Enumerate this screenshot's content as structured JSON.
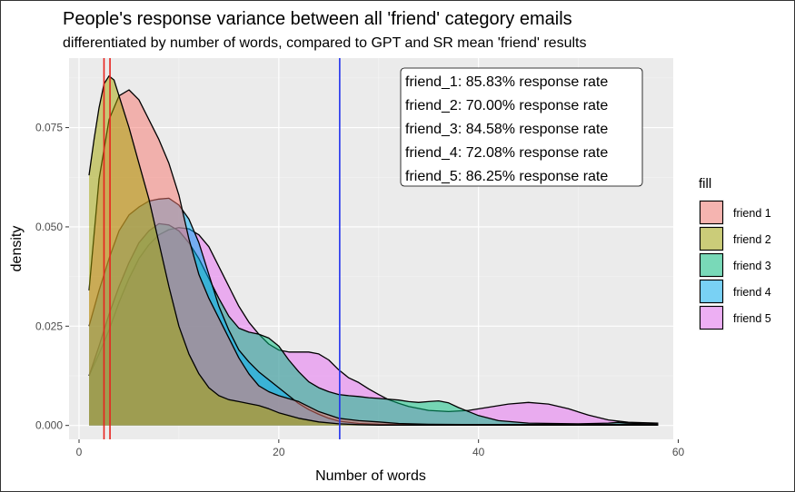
{
  "chart_data": {
    "type": "area",
    "title": "People's response variance between all 'friend' category emails",
    "subtitle": "differentiated by number of words, compared to GPT and SR mean 'friend' results",
    "xlabel": "Number of words",
    "ylabel": "density",
    "xlim": [
      -1,
      59.5
    ],
    "ylim": [
      -0.0035,
      0.0925
    ],
    "x_ticks": [
      0,
      20,
      40,
      60
    ],
    "y_ticks": [
      0.0,
      0.025,
      0.05,
      0.075
    ],
    "x_tick_labels": [
      "0",
      "20",
      "40",
      "60"
    ],
    "y_tick_labels": [
      "0.000",
      "0.025",
      "0.050",
      "0.075"
    ],
    "grid": true,
    "legend": {
      "title": "fill",
      "placement": "right",
      "entries": [
        "friend 1",
        "friend 2",
        "friend 3",
        "friend 4",
        "friend 5"
      ]
    },
    "vlines": [
      {
        "x": 2.5,
        "color": "#e8221f"
      },
      {
        "x": 3.1,
        "color": "#e8221f"
      },
      {
        "x": 26.1,
        "color": "#2233ee"
      }
    ],
    "annotations": [
      "friend_1: 85.83% response rate",
      "friend_2: 70.00% response rate",
      "friend_3: 84.58% response rate",
      "friend_4: 72.08% response rate",
      "friend_5: 86.25% response rate"
    ],
    "series": [
      {
        "name": "friend 1",
        "color": "#F8766D",
        "points": [
          [
            1,
            0.034
          ],
          [
            2,
            0.062
          ],
          [
            3,
            0.077
          ],
          [
            4,
            0.083
          ],
          [
            5,
            0.0845
          ],
          [
            6,
            0.082
          ],
          [
            7,
            0.077
          ],
          [
            8,
            0.072
          ],
          [
            9,
            0.066
          ],
          [
            10,
            0.058
          ],
          [
            11,
            0.047
          ],
          [
            12,
            0.038
          ],
          [
            13,
            0.032
          ],
          [
            14,
            0.027
          ],
          [
            15,
            0.022
          ],
          [
            16,
            0.017
          ],
          [
            17,
            0.013
          ],
          [
            18,
            0.01
          ],
          [
            19,
            0.0085
          ],
          [
            20,
            0.0075
          ],
          [
            22,
            0.006
          ],
          [
            24,
            0.0035
          ],
          [
            26,
            0.0018
          ],
          [
            28,
            0.0012
          ],
          [
            30,
            0.0009
          ],
          [
            32,
            0.0005
          ],
          [
            35,
            0.0003
          ],
          [
            40,
            0.0002
          ],
          [
            45,
            0.0002
          ],
          [
            50,
            0.0002
          ],
          [
            55,
            0.0003
          ],
          [
            58,
            0.0003
          ]
        ]
      },
      {
        "name": "friend 2",
        "color": "#A3A500",
        "points": [
          [
            1,
            0.063
          ],
          [
            1.5,
            0.072
          ],
          [
            2,
            0.08
          ],
          [
            2.5,
            0.086
          ],
          [
            3,
            0.088
          ],
          [
            3.5,
            0.087
          ],
          [
            4,
            0.083
          ],
          [
            5,
            0.075
          ],
          [
            6,
            0.066
          ],
          [
            7,
            0.057
          ],
          [
            8,
            0.046
          ],
          [
            9,
            0.035
          ],
          [
            10,
            0.025
          ],
          [
            11,
            0.018
          ],
          [
            12,
            0.013
          ],
          [
            13,
            0.0095
          ],
          [
            14,
            0.0075
          ],
          [
            15,
            0.0065
          ],
          [
            16,
            0.006
          ],
          [
            17,
            0.0055
          ],
          [
            18,
            0.005
          ],
          [
            19,
            0.0042
          ],
          [
            20,
            0.0032
          ],
          [
            22,
            0.0018
          ],
          [
            24,
            0.0009
          ],
          [
            26,
            0.0004
          ],
          [
            28,
            0.0002
          ],
          [
            30,
            0.0001
          ],
          [
            35,
            0.0001
          ],
          [
            40,
            0.0001
          ],
          [
            45,
            0.0001
          ],
          [
            50,
            0.0001
          ],
          [
            58,
            0.0001
          ]
        ]
      },
      {
        "name": "friend 3",
        "color": "#00BF7D",
        "points": [
          [
            1,
            0.0125
          ],
          [
            2,
            0.02
          ],
          [
            3,
            0.028
          ],
          [
            4,
            0.035
          ],
          [
            5,
            0.041
          ],
          [
            6,
            0.046
          ],
          [
            7,
            0.049
          ],
          [
            8,
            0.0508
          ],
          [
            9,
            0.0505
          ],
          [
            10,
            0.049
          ],
          [
            11,
            0.046
          ],
          [
            12,
            0.042
          ],
          [
            13,
            0.037
          ],
          [
            14,
            0.032
          ],
          [
            15,
            0.0275
          ],
          [
            16,
            0.0245
          ],
          [
            17,
            0.0235
          ],
          [
            18,
            0.023
          ],
          [
            19,
            0.022
          ],
          [
            20,
            0.02
          ],
          [
            21,
            0.0165
          ],
          [
            22,
            0.0135
          ],
          [
            23,
            0.011
          ],
          [
            24,
            0.0095
          ],
          [
            25,
            0.0085
          ],
          [
            26,
            0.0078
          ],
          [
            27,
            0.0075
          ],
          [
            28,
            0.0073
          ],
          [
            29,
            0.007
          ],
          [
            30,
            0.0068
          ],
          [
            32,
            0.0064
          ],
          [
            33,
            0.006
          ],
          [
            34,
            0.0058
          ],
          [
            35,
            0.006
          ],
          [
            36,
            0.0062
          ],
          [
            37,
            0.0057
          ],
          [
            38,
            0.0045
          ],
          [
            40,
            0.0025
          ],
          [
            42,
            0.0012
          ],
          [
            45,
            0.0006
          ],
          [
            50,
            0.0004
          ],
          [
            53,
            0.0006
          ],
          [
            54,
            0.0008
          ],
          [
            55,
            0.0006
          ],
          [
            58,
            0.0003
          ]
        ]
      },
      {
        "name": "friend 4",
        "color": "#00B0F6",
        "points": [
          [
            1,
            0.025
          ],
          [
            2,
            0.034
          ],
          [
            3,
            0.042
          ],
          [
            4,
            0.049
          ],
          [
            5,
            0.053
          ],
          [
            6,
            0.055
          ],
          [
            7,
            0.0565
          ],
          [
            8,
            0.057
          ],
          [
            9,
            0.0572
          ],
          [
            10,
            0.0555
          ],
          [
            11,
            0.052
          ],
          [
            12,
            0.046
          ],
          [
            13,
            0.038
          ],
          [
            14,
            0.03
          ],
          [
            15,
            0.024
          ],
          [
            16,
            0.019
          ],
          [
            17,
            0.016
          ],
          [
            18,
            0.0135
          ],
          [
            19,
            0.0115
          ],
          [
            20,
            0.0095
          ],
          [
            21,
            0.0075
          ],
          [
            22,
            0.0055
          ],
          [
            23,
            0.004
          ],
          [
            24,
            0.0028
          ],
          [
            25,
            0.0018
          ],
          [
            26,
            0.0011
          ],
          [
            28,
            0.0005
          ],
          [
            30,
            0.0003
          ],
          [
            35,
            0.0002
          ],
          [
            40,
            0.0002
          ],
          [
            45,
            0.0002
          ],
          [
            50,
            0.0002
          ],
          [
            55,
            0.0002
          ],
          [
            58,
            0.0002
          ]
        ]
      },
      {
        "name": "friend 5",
        "color": "#E76BF3",
        "points": [
          [
            1,
            0.0125
          ],
          [
            2,
            0.018
          ],
          [
            3,
            0.024
          ],
          [
            4,
            0.031
          ],
          [
            5,
            0.037
          ],
          [
            6,
            0.042
          ],
          [
            7,
            0.0455
          ],
          [
            8,
            0.048
          ],
          [
            9,
            0.0493
          ],
          [
            10,
            0.0498
          ],
          [
            11,
            0.0495
          ],
          [
            12,
            0.048
          ],
          [
            13,
            0.045
          ],
          [
            14,
            0.04
          ],
          [
            15,
            0.035
          ],
          [
            16,
            0.03
          ],
          [
            17,
            0.026
          ],
          [
            18,
            0.023
          ],
          [
            19,
            0.0205
          ],
          [
            20,
            0.019
          ],
          [
            21,
            0.0185
          ],
          [
            22,
            0.0185
          ],
          [
            23,
            0.0185
          ],
          [
            24,
            0.018
          ],
          [
            25,
            0.0165
          ],
          [
            26,
            0.014
          ],
          [
            27,
            0.012
          ],
          [
            28,
            0.0108
          ],
          [
            29,
            0.0092
          ],
          [
            30,
            0.0078
          ],
          [
            31,
            0.0065
          ],
          [
            32,
            0.0056
          ],
          [
            33,
            0.0048
          ],
          [
            35,
            0.0038
          ],
          [
            37,
            0.0035
          ],
          [
            39,
            0.0038
          ],
          [
            41,
            0.0046
          ],
          [
            43,
            0.0054
          ],
          [
            45,
            0.0058
          ],
          [
            47,
            0.0054
          ],
          [
            49,
            0.0042
          ],
          [
            51,
            0.0026
          ],
          [
            53,
            0.0014
          ],
          [
            55,
            0.0008
          ],
          [
            58,
            0.0006
          ]
        ]
      }
    ]
  }
}
